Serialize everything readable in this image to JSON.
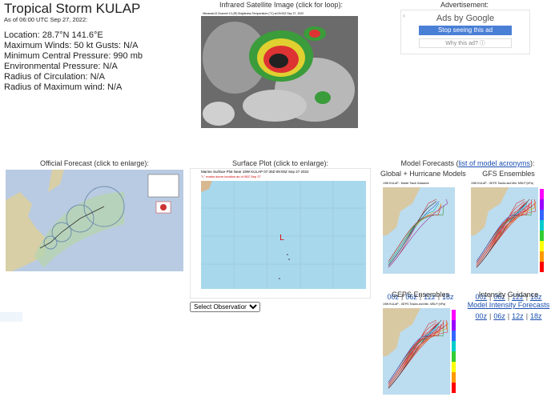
{
  "header": {
    "title": "Tropical Storm KULAP",
    "as_of": "As of 06:00 UTC Sep 27, 2022:"
  },
  "storm_info": [
    "Location: 28.7°N 141.6°E",
    "Maximum Winds: 50 kt  Gusts: N/A",
    "Minimum Central Pressure: 990 mb",
    "Environmental Pressure: N/A",
    "Radius of Circulation: N/A",
    "Radius of Maximum wind: N/A"
  ],
  "satellite": {
    "caption": "Infrared Satellite Image (click for loop):",
    "image_title": "Himawari-8 Channel 13 (IR) Brightness Temperature (°C) at 09:00Z Sep 27, 2022"
  },
  "ad": {
    "label": "Advertisement:",
    "brand": "Ads by Google",
    "stop": "Stop seeing this ad",
    "why": "Why this ad? ⓘ"
  },
  "official_forecast": {
    "caption": "Official Forecast (click to enlarge):"
  },
  "surface_plot": {
    "caption": "Surface Plot (click to enlarge):",
    "plot_title": "Marine Surface Plot Near 19W KULAP 07:30Z-09:00Z Sep 27 2022",
    "plot_subtitle": "\"L\" marks storm location as of 06Z Sep 27",
    "storm_marker": "L",
    "select": "Select Observation Time..."
  },
  "models": {
    "caption_before": "Model Forecasts (",
    "caption_link": "list of model acronyms",
    "caption_after": "):",
    "separator": "|",
    "panels": [
      {
        "title": "Global + Hurricane Models",
        "image_title": "19W KULAP - Model Track Guidance",
        "runs": [
          "00z",
          "06z",
          "12z",
          "18z"
        ]
      },
      {
        "title": "GFS Ensembles",
        "image_title": "19W KULAP - GEFS Tracks and Min. MSLP (hPa)",
        "runs": [
          "00z",
          "06z",
          "12z",
          "18z"
        ]
      },
      {
        "title": "GEPS Ensembles",
        "image_title": "19W KULAP - GEPS Tracks and Min. MSLP (hPa)"
      }
    ],
    "intensity": {
      "title": "Intensity Guidance",
      "link": "Model Intensity Forecasts",
      "runs": [
        "00z",
        "06z",
        "12z",
        "18z"
      ]
    }
  }
}
